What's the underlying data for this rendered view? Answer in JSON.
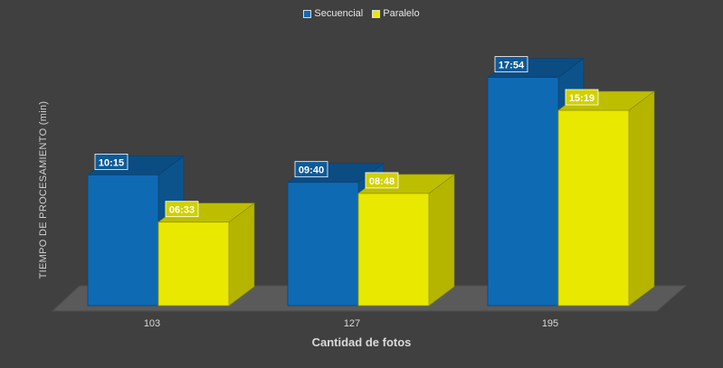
{
  "chart_data": {
    "type": "bar",
    "title": "",
    "xlabel": "Cantidad de fotos",
    "ylabel": "TIEMPO DE PROCESAMIENTO (min)",
    "categories": [
      "103",
      "127",
      "195"
    ],
    "series": [
      {
        "name": "Secuencial",
        "color": "#0f6ab4",
        "values": [
          10.25,
          9.667,
          17.9
        ],
        "labels": [
          "10:15",
          "09:40",
          "17:54"
        ]
      },
      {
        "name": "Paralelo",
        "color": "#e8e800",
        "values": [
          6.55,
          8.8,
          15.317
        ],
        "labels": [
          "06:33",
          "08:48",
          "15:19"
        ]
      }
    ],
    "ylim": [
      0,
      20
    ],
    "grid": false,
    "legend": "top-center",
    "three_d": true
  }
}
